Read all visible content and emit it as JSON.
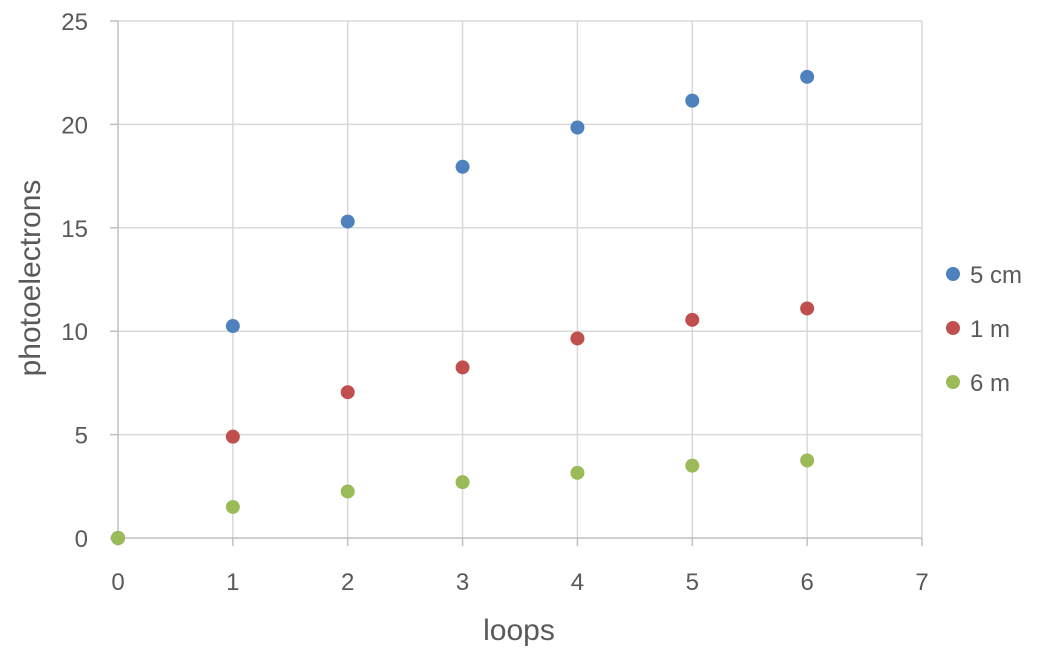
{
  "chart_data": {
    "type": "scatter",
    "title": "",
    "xlabel": "loops",
    "ylabel": "photoelectrons",
    "xlim": [
      0,
      7
    ],
    "ylim": [
      0,
      25
    ],
    "xticks": [
      0,
      1,
      2,
      3,
      4,
      5,
      6,
      7
    ],
    "yticks": [
      0,
      5,
      10,
      15,
      20,
      25
    ],
    "grid": true,
    "legend_position": "right",
    "series": [
      {
        "name": "5 cm",
        "color": "#4F81BD",
        "points": [
          [
            0,
            0
          ],
          [
            1,
            10.25
          ],
          [
            2,
            15.3
          ],
          [
            3,
            17.95
          ],
          [
            4,
            19.85
          ],
          [
            5,
            21.15
          ],
          [
            6,
            22.3
          ]
        ]
      },
      {
        "name": "1 m",
        "color": "#C0504D",
        "points": [
          [
            0,
            0
          ],
          [
            1,
            4.9
          ],
          [
            2,
            7.05
          ],
          [
            3,
            8.25
          ],
          [
            4,
            9.65
          ],
          [
            5,
            10.55
          ],
          [
            6,
            11.1
          ]
        ]
      },
      {
        "name": "6 m",
        "color": "#9BBB59",
        "points": [
          [
            0,
            0
          ],
          [
            1,
            1.5
          ],
          [
            2,
            2.25
          ],
          [
            3,
            2.7
          ],
          [
            4,
            3.15
          ],
          [
            5,
            3.5
          ],
          [
            6,
            3.75
          ]
        ]
      }
    ]
  }
}
